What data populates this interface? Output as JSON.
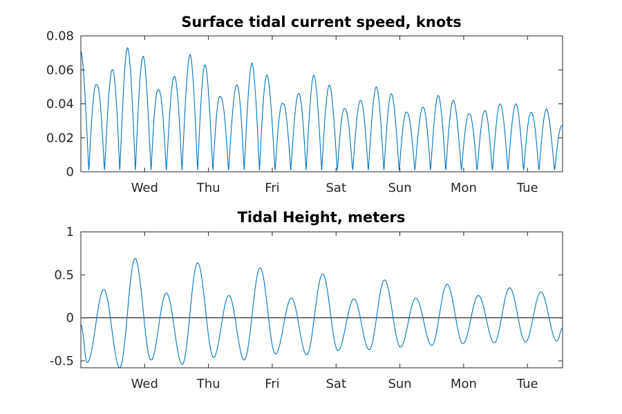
{
  "figure": {
    "background": "#ffffff",
    "series_color": "#0072bd",
    "axis_color": "#262626"
  },
  "chart_data": [
    {
      "type": "line",
      "title": "Surface tidal current speed, knots",
      "xlabel": "",
      "ylabel": "",
      "xlim": [
        0,
        7.55
      ],
      "ylim": [
        0,
        0.08
      ],
      "x_ticks": [
        {
          "x": 1.0,
          "label": "Wed"
        },
        {
          "x": 2.0,
          "label": "Thu"
        },
        {
          "x": 3.0,
          "label": "Fri"
        },
        {
          "x": 4.0,
          "label": "Sat"
        },
        {
          "x": 5.0,
          "label": "Sun"
        },
        {
          "x": 6.0,
          "label": "Mon"
        },
        {
          "x": 7.0,
          "label": "Tue"
        }
      ],
      "y_ticks": [
        {
          "y": 0,
          "label": "0"
        },
        {
          "y": 0.02,
          "label": "0.02"
        },
        {
          "y": 0.04,
          "label": "0.04"
        },
        {
          "y": 0.06,
          "label": "0.06"
        },
        {
          "y": 0.08,
          "label": "0.08"
        }
      ],
      "series": [
        {
          "x": [
            0.0,
            0.13,
            0.26,
            0.38,
            0.51,
            0.64,
            0.77,
            0.9,
            1.03,
            1.16,
            1.28,
            1.41,
            1.54,
            1.67,
            1.8,
            1.93,
            2.06,
            2.18,
            2.31,
            2.44,
            2.57,
            2.7,
            2.83,
            2.96,
            3.08,
            3.21,
            3.34,
            3.47,
            3.6,
            3.73,
            3.86,
            3.98,
            4.11,
            4.24,
            4.37,
            4.5,
            4.63,
            4.76,
            4.88,
            5.01,
            5.14,
            5.27,
            5.4,
            5.53,
            5.66,
            5.78,
            5.91,
            6.04,
            6.17,
            6.3,
            6.43,
            6.56,
            6.68,
            6.81,
            6.94,
            7.07,
            7.2,
            7.33,
            7.46,
            7.55
          ],
          "peaks_y": [
            0.071,
            0.051,
            0.06,
            0.073,
            0.068,
            0.048,
            0.056,
            0.069,
            0.063,
            0.044,
            0.051,
            0.064,
            0.057,
            0.04,
            0.046,
            0.057,
            0.051,
            0.037,
            0.042,
            0.05,
            0.046,
            0.035,
            0.038,
            0.045,
            0.042,
            0.034,
            0.036,
            0.04,
            0.04,
            0.035,
            0.037,
            0.027
          ],
          "peaks_x": [
            0.0,
            0.25,
            0.49,
            0.73,
            0.98,
            1.22,
            1.46,
            1.71,
            1.95,
            2.19,
            2.44,
            2.68,
            2.92,
            3.17,
            3.41,
            3.65,
            3.9,
            4.14,
            4.38,
            4.63,
            4.87,
            5.11,
            5.36,
            5.6,
            5.84,
            6.09,
            6.33,
            6.57,
            6.82,
            7.06,
            7.3,
            7.55
          ]
        }
      ]
    },
    {
      "type": "line",
      "title": "Tidal Height, meters",
      "xlabel": "",
      "ylabel": "",
      "xlim": [
        0,
        7.55
      ],
      "ylim": [
        -0.58,
        1.0
      ],
      "zero_line": true,
      "x_ticks": [
        {
          "x": 1.0,
          "label": "Wed"
        },
        {
          "x": 2.0,
          "label": "Thu"
        },
        {
          "x": 3.0,
          "label": "Fri"
        },
        {
          "x": 4.0,
          "label": "Sat"
        },
        {
          "x": 5.0,
          "label": "Sun"
        },
        {
          "x": 6.0,
          "label": "Mon"
        },
        {
          "x": 7.0,
          "label": "Tue"
        }
      ],
      "y_ticks": [
        {
          "y": -0.5,
          "label": "-0.5"
        },
        {
          "y": 0,
          "label": "0"
        },
        {
          "y": 0.5,
          "label": "0.5"
        },
        {
          "y": 1,
          "label": "1"
        }
      ],
      "series": [
        {
          "extrema_x": [
            0.0,
            0.1,
            0.36,
            0.61,
            0.85,
            1.1,
            1.34,
            1.59,
            1.83,
            2.08,
            2.32,
            2.56,
            2.81,
            3.05,
            3.3,
            3.54,
            3.79,
            4.03,
            4.28,
            4.52,
            4.76,
            5.01,
            5.25,
            5.5,
            5.74,
            5.99,
            6.23,
            6.48,
            6.72,
            6.97,
            7.21,
            7.46,
            7.55
          ],
          "extrema_y": [
            -0.08,
            -0.52,
            0.33,
            -0.58,
            0.69,
            -0.49,
            0.29,
            -0.54,
            0.64,
            -0.46,
            0.26,
            -0.49,
            0.58,
            -0.42,
            0.23,
            -0.43,
            0.51,
            -0.38,
            0.22,
            -0.37,
            0.44,
            -0.34,
            0.23,
            -0.32,
            0.39,
            -0.3,
            0.26,
            -0.29,
            0.35,
            -0.28,
            0.3,
            -0.27,
            -0.12
          ]
        }
      ]
    }
  ]
}
